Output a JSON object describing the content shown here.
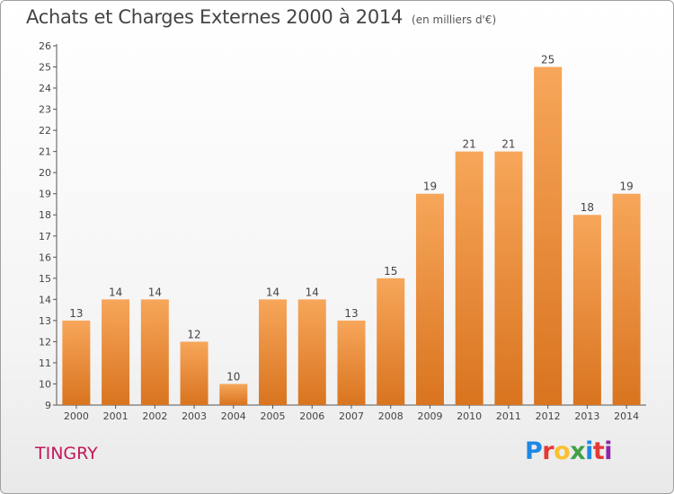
{
  "header": {
    "title": "Achats et Charges Externes 2000 à 2014",
    "unit": "(en milliers d'€)"
  },
  "footer": {
    "town": "TINGRY",
    "logo": "Proxiti"
  },
  "colors": {
    "bar_light": "#f7a65a",
    "bar_dark": "#d9741f",
    "town": "#c2185b",
    "axis": "#555555"
  },
  "chart_data": {
    "type": "bar",
    "title": "Achats et Charges Externes 2000 à 2014",
    "subtitle": "(en milliers d'€)",
    "categories": [
      "2000",
      "2001",
      "2002",
      "2003",
      "2004",
      "2005",
      "2006",
      "2007",
      "2008",
      "2009",
      "2010",
      "2011",
      "2012",
      "2013",
      "2014"
    ],
    "values": [
      13,
      14,
      14,
      12,
      10,
      14,
      14,
      13,
      15,
      19,
      21,
      21,
      25,
      18,
      19
    ],
    "ylim": [
      9,
      26
    ],
    "yticks": [
      9,
      10,
      11,
      12,
      13,
      14,
      15,
      16,
      17,
      18,
      19,
      20,
      21,
      22,
      23,
      24,
      25,
      26
    ],
    "grid": false,
    "data_labels": true,
    "xlabel": "",
    "ylabel": ""
  }
}
